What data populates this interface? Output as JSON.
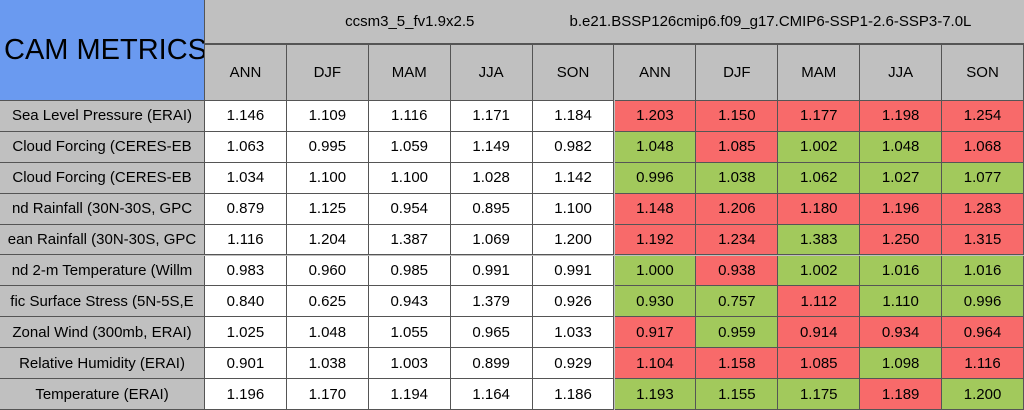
{
  "header": {
    "title": "CAM METRICS",
    "groups": [
      "ccsm3_5_fv1.9x2.5",
      "b.e21.BSSP126cmip6.f09_g17.CMIP6-SSP1-2.6-SSP3-7.0L"
    ],
    "seasons": [
      "ANN",
      "DJF",
      "MAM",
      "JJA",
      "SON",
      "ANN",
      "DJF",
      "MAM",
      "JJA",
      "SON"
    ]
  },
  "table": {
    "rows": [
      {
        "label": "Sea Level Pressure (ERAI)",
        "cells": [
          {
            "text": "1.146",
            "color": "#ffffff"
          },
          {
            "text": "1.109",
            "color": "#ffffff"
          },
          {
            "text": "1.116",
            "color": "#ffffff"
          },
          {
            "text": "1.171",
            "color": "#ffffff"
          },
          {
            "text": "1.184",
            "color": "#ffffff"
          },
          {
            "text": "1.203",
            "color": "#f86a6a"
          },
          {
            "text": "1.150",
            "color": "#f86a6a"
          },
          {
            "text": "1.177",
            "color": "#f86a6a"
          },
          {
            "text": "1.198",
            "color": "#f86a6a"
          },
          {
            "text": "1.254",
            "color": "#f86a6a"
          }
        ]
      },
      {
        "label": "Cloud Forcing (CERES-EB",
        "cells": [
          {
            "text": "1.063",
            "color": "#ffffff"
          },
          {
            "text": "0.995",
            "color": "#ffffff"
          },
          {
            "text": "1.059",
            "color": "#ffffff"
          },
          {
            "text": "1.149",
            "color": "#ffffff"
          },
          {
            "text": "0.982",
            "color": "#ffffff"
          },
          {
            "text": "1.048",
            "color": "#a2c95c"
          },
          {
            "text": "1.085",
            "color": "#f86a6a"
          },
          {
            "text": "1.002",
            "color": "#a2c95c"
          },
          {
            "text": "1.048",
            "color": "#a2c95c"
          },
          {
            "text": "1.068",
            "color": "#f86a6a"
          }
        ]
      },
      {
        "label": "Cloud Forcing (CERES-EB",
        "cells": [
          {
            "text": "1.034",
            "color": "#ffffff"
          },
          {
            "text": "1.100",
            "color": "#ffffff"
          },
          {
            "text": "1.100",
            "color": "#ffffff"
          },
          {
            "text": "1.028",
            "color": "#ffffff"
          },
          {
            "text": "1.142",
            "color": "#ffffff"
          },
          {
            "text": "0.996",
            "color": "#a2c95c"
          },
          {
            "text": "1.038",
            "color": "#a2c95c"
          },
          {
            "text": "1.062",
            "color": "#a2c95c"
          },
          {
            "text": "1.027",
            "color": "#a2c95c"
          },
          {
            "text": "1.077",
            "color": "#a2c95c"
          }
        ]
      },
      {
        "label": "nd Rainfall (30N-30S, GPC",
        "cells": [
          {
            "text": "0.879",
            "color": "#ffffff"
          },
          {
            "text": "1.125",
            "color": "#ffffff"
          },
          {
            "text": "0.954",
            "color": "#ffffff"
          },
          {
            "text": "0.895",
            "color": "#ffffff"
          },
          {
            "text": "1.100",
            "color": "#ffffff"
          },
          {
            "text": "1.148",
            "color": "#f86a6a"
          },
          {
            "text": "1.206",
            "color": "#f86a6a"
          },
          {
            "text": "1.180",
            "color": "#f86a6a"
          },
          {
            "text": "1.196",
            "color": "#f86a6a"
          },
          {
            "text": "1.283",
            "color": "#f86a6a"
          }
        ]
      },
      {
        "label": "ean Rainfall (30N-30S, GPC",
        "cells": [
          {
            "text": "1.116",
            "color": "#ffffff"
          },
          {
            "text": "1.204",
            "color": "#ffffff"
          },
          {
            "text": "1.387",
            "color": "#ffffff"
          },
          {
            "text": "1.069",
            "color": "#ffffff"
          },
          {
            "text": "1.200",
            "color": "#ffffff"
          },
          {
            "text": "1.192",
            "color": "#f86a6a"
          },
          {
            "text": "1.234",
            "color": "#f86a6a"
          },
          {
            "text": "1.383",
            "color": "#a2c95c"
          },
          {
            "text": "1.250",
            "color": "#f86a6a"
          },
          {
            "text": "1.315",
            "color": "#f86a6a"
          }
        ]
      },
      {
        "label": "nd 2-m Temperature (Willm",
        "cells": [
          {
            "text": "0.983",
            "color": "#ffffff"
          },
          {
            "text": "0.960",
            "color": "#ffffff"
          },
          {
            "text": "0.985",
            "color": "#ffffff"
          },
          {
            "text": "0.991",
            "color": "#ffffff"
          },
          {
            "text": "0.991",
            "color": "#ffffff"
          },
          {
            "text": "1.000",
            "color": "#a2c95c"
          },
          {
            "text": "0.938",
            "color": "#f86a6a"
          },
          {
            "text": "1.002",
            "color": "#a2c95c"
          },
          {
            "text": "1.016",
            "color": "#a2c95c"
          },
          {
            "text": "1.016",
            "color": "#a2c95c"
          }
        ]
      },
      {
        "label": "fic Surface Stress (5N-5S,E",
        "cells": [
          {
            "text": "0.840",
            "color": "#ffffff"
          },
          {
            "text": "0.625",
            "color": "#ffffff"
          },
          {
            "text": "0.943",
            "color": "#ffffff"
          },
          {
            "text": "1.379",
            "color": "#ffffff"
          },
          {
            "text": "0.926",
            "color": "#ffffff"
          },
          {
            "text": "0.930",
            "color": "#a2c95c"
          },
          {
            "text": "0.757",
            "color": "#a2c95c"
          },
          {
            "text": "1.112",
            "color": "#f86a6a"
          },
          {
            "text": "1.110",
            "color": "#a2c95c"
          },
          {
            "text": "0.996",
            "color": "#a2c95c"
          }
        ]
      },
      {
        "label": "Zonal Wind (300mb, ERAI)",
        "cells": [
          {
            "text": "1.025",
            "color": "#ffffff"
          },
          {
            "text": "1.048",
            "color": "#ffffff"
          },
          {
            "text": "1.055",
            "color": "#ffffff"
          },
          {
            "text": "0.965",
            "color": "#ffffff"
          },
          {
            "text": "1.033",
            "color": "#ffffff"
          },
          {
            "text": "0.917",
            "color": "#f86a6a"
          },
          {
            "text": "0.959",
            "color": "#a2c95c"
          },
          {
            "text": "0.914",
            "color": "#f86a6a"
          },
          {
            "text": "0.934",
            "color": "#f86a6a"
          },
          {
            "text": "0.964",
            "color": "#f86a6a"
          }
        ]
      },
      {
        "label": "Relative Humidity (ERAI)",
        "cells": [
          {
            "text": "0.901",
            "color": "#ffffff"
          },
          {
            "text": "1.038",
            "color": "#ffffff"
          },
          {
            "text": "1.003",
            "color": "#ffffff"
          },
          {
            "text": "0.899",
            "color": "#ffffff"
          },
          {
            "text": "0.929",
            "color": "#ffffff"
          },
          {
            "text": "1.104",
            "color": "#f86a6a"
          },
          {
            "text": "1.158",
            "color": "#f86a6a"
          },
          {
            "text": "1.085",
            "color": "#f86a6a"
          },
          {
            "text": "1.098",
            "color": "#a2c95c"
          },
          {
            "text": "1.116",
            "color": "#f86a6a"
          }
        ]
      },
      {
        "label": "Temperature (ERAI)",
        "cells": [
          {
            "text": "1.196",
            "color": "#ffffff"
          },
          {
            "text": "1.170",
            "color": "#ffffff"
          },
          {
            "text": "1.194",
            "color": "#ffffff"
          },
          {
            "text": "1.164",
            "color": "#ffffff"
          },
          {
            "text": "1.186",
            "color": "#ffffff"
          },
          {
            "text": "1.193",
            "color": "#a2c95c"
          },
          {
            "text": "1.155",
            "color": "#a2c95c"
          },
          {
            "text": "1.175",
            "color": "#a2c95c"
          },
          {
            "text": "1.189",
            "color": "#f86a6a"
          },
          {
            "text": "1.200",
            "color": "#a2c95c"
          }
        ]
      }
    ]
  }
}
